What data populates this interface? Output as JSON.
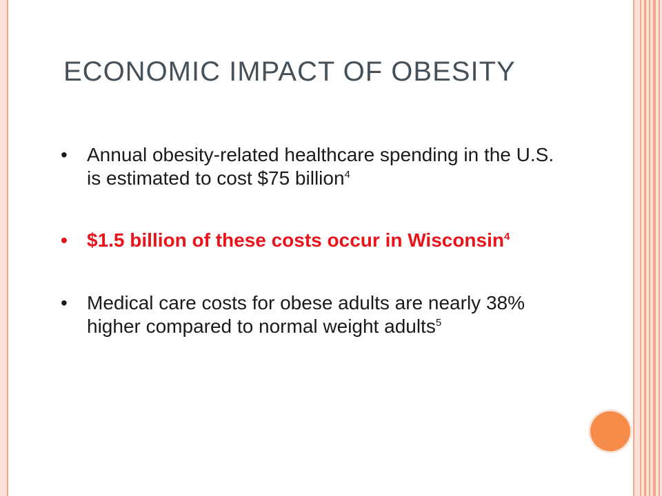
{
  "slide": {
    "title": "ECONOMIC IMPACT OF OBESITY",
    "bullet_glyph": "•",
    "bullets": [
      {
        "text": "Annual obesity-related healthcare spending in the U.S. is estimated to cost $75 billion",
        "ref": "4",
        "color": "#1a1a1a"
      },
      {
        "text": "$1.5 billion of these costs occur in Wisconsin",
        "ref": "4",
        "color": "#e8141a"
      },
      {
        "text": "Medical care costs for obese adults are nearly 38% higher compared to normal weight adults",
        "ref": "5",
        "color": "#1a1a1a"
      }
    ]
  },
  "theme": {
    "title_color": "#44505a",
    "frame_color": "#fbe3da",
    "stripe_color": "#f4a68b",
    "accent_circle_color": "#f58c4a"
  }
}
